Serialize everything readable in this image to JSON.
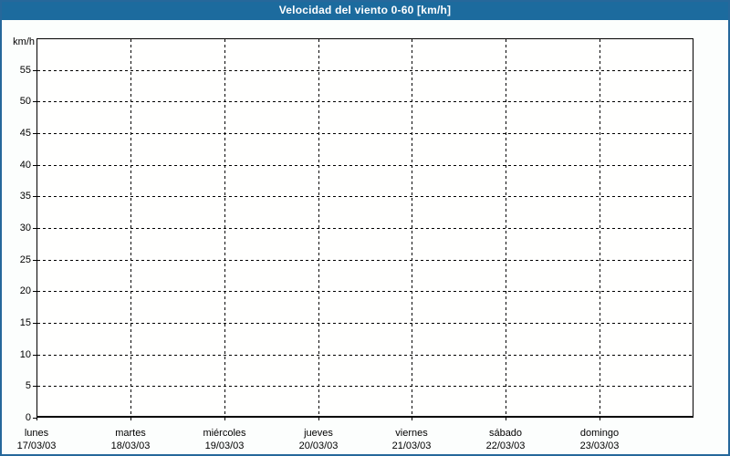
{
  "window": {
    "title": "Velocidad del viento 0-60 [km/h]"
  },
  "colors": {
    "titlebar_bg": "#1c6b9e",
    "titlebar_text": "#ffffff",
    "outer_border": "#26689b",
    "content_bg": "#fcfefd",
    "plot_bg": "#fffffe",
    "axis": "#000000",
    "grid": "#000000",
    "text": "#000000"
  },
  "chart_data": {
    "type": "line",
    "title": "Velocidad del viento 0-60 [km/h]",
    "ylabel": "km/h",
    "xlabel": "",
    "ylim": [
      0,
      60
    ],
    "ytick_step": 5,
    "ytick_labels": [
      "0",
      "5",
      "10",
      "15",
      "20",
      "25",
      "30",
      "35",
      "40",
      "45",
      "50",
      "55"
    ],
    "grid": "dashed black, horizontal every 5 km/h, vertical at each day boundary",
    "legend": "none",
    "categories": [
      {
        "day": "lunes",
        "date": "17/03/03"
      },
      {
        "day": "martes",
        "date": "18/03/03"
      },
      {
        "day": "miércoles",
        "date": "19/03/03"
      },
      {
        "day": "jueves",
        "date": "20/03/03"
      },
      {
        "day": "viernes",
        "date": "21/03/03"
      },
      {
        "day": "sábado",
        "date": "22/03/03"
      },
      {
        "day": "domingo",
        "date": "23/03/03"
      }
    ],
    "series": []
  }
}
